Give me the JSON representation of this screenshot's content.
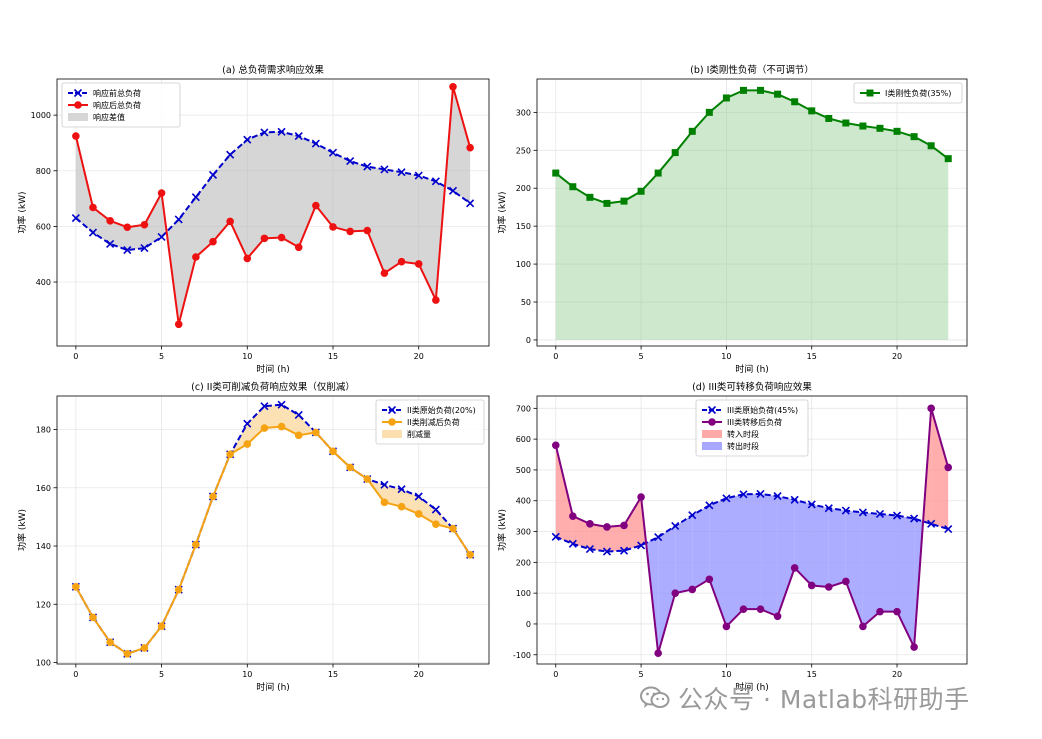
{
  "chart_data": [
    {
      "type": "line",
      "title": "(a) 总负荷需求响应效果",
      "xlabel": "时间 (h)",
      "ylabel": "功率 (kW)",
      "xlim": [
        -1.1,
        24.1
      ],
      "ylim": [
        170,
        1130
      ],
      "xticks": [
        0,
        5,
        10,
        15,
        20
      ],
      "yticks": [
        400,
        600,
        800,
        1000
      ],
      "grid": true,
      "legend_position": "top-left",
      "x": [
        0,
        1,
        2,
        3,
        4,
        5,
        6,
        7,
        8,
        9,
        10,
        11,
        12,
        13,
        14,
        15,
        16,
        17,
        18,
        19,
        20,
        21,
        22,
        23
      ],
      "series": [
        {
          "name": "响应前总负荷",
          "color": "#0000cc",
          "style": "dashed",
          "marker": "x",
          "values": [
            630,
            578,
            537,
            515,
            522,
            562,
            625,
            705,
            785,
            858,
            912,
            938,
            940,
            925,
            898,
            865,
            835,
            815,
            805,
            795,
            783,
            762,
            728,
            683
          ]
        },
        {
          "name": "响应后总负荷",
          "color": "#ee1111",
          "style": "solid",
          "marker": "o",
          "values": [
            925,
            668,
            620,
            597,
            606,
            720,
            248,
            490,
            545,
            618,
            485,
            557,
            560,
            525,
            675,
            598,
            582,
            585,
            432,
            473,
            465,
            335,
            1102,
            883
          ]
        }
      ],
      "fill": [
        {
          "name": "响应差值",
          "color": "#bbbbbb",
          "between": [
            0,
            1
          ]
        }
      ]
    },
    {
      "type": "area",
      "title": "(b) I类刚性负荷（不可调节）",
      "xlabel": "时间 (h)",
      "ylabel": "功率 (kW)",
      "xlim": [
        -1.1,
        24.1
      ],
      "ylim": [
        -8,
        344
      ],
      "xticks": [
        0,
        5,
        10,
        15,
        20
      ],
      "yticks": [
        0,
        50,
        100,
        150,
        200,
        250,
        300
      ],
      "grid": true,
      "legend_position": "top-right",
      "x": [
        0,
        1,
        2,
        3,
        4,
        5,
        6,
        7,
        8,
        9,
        10,
        11,
        12,
        13,
        14,
        15,
        16,
        17,
        18,
        19,
        20,
        21,
        22,
        23
      ],
      "series": [
        {
          "name": "I类刚性负荷(35%)",
          "color": "#008000",
          "style": "solid",
          "marker": "s",
          "values": [
            220,
            202,
            188,
            180,
            183,
            196,
            220,
            247,
            275,
            300,
            319,
            329,
            329,
            324,
            314,
            302,
            292,
            286,
            282,
            279,
            275,
            268,
            256,
            239
          ]
        }
      ],
      "fill": [
        {
          "color": "#90cc90",
          "between": [
            0,
            "zero"
          ]
        }
      ]
    },
    {
      "type": "line",
      "title": "(c) II类可削减负荷响应效果（仅削减）",
      "xlabel": "时间 (h)",
      "ylabel": "功率 (kW)",
      "xlim": [
        -1.1,
        24.1
      ],
      "ylim": [
        99.5,
        191.5
      ],
      "xticks": [
        0,
        5,
        10,
        15,
        20
      ],
      "yticks": [
        100,
        120,
        140,
        160,
        180
      ],
      "grid": true,
      "legend_position": "top-right",
      "x": [
        0,
        1,
        2,
        3,
        4,
        5,
        6,
        7,
        8,
        9,
        10,
        11,
        12,
        13,
        14,
        15,
        16,
        17,
        18,
        19,
        20,
        21,
        22,
        23
      ],
      "series": [
        {
          "name": "II类原始负荷(20%)",
          "color": "#0000cc",
          "style": "dashed",
          "marker": "x",
          "values": [
            126,
            115.5,
            107,
            103,
            105,
            112.5,
            125,
            140.5,
            157,
            171.5,
            182,
            188,
            188.5,
            185,
            179,
            172.5,
            167,
            163,
            161,
            159.5,
            157,
            152.5,
            146,
            137
          ]
        },
        {
          "name": "II类削减后负荷",
          "color": "#f5a312",
          "style": "solid",
          "marker": "o",
          "values": [
            126,
            115.5,
            107,
            103,
            105,
            112.5,
            125,
            140.5,
            157,
            171.5,
            175,
            180.5,
            181,
            178,
            179,
            172.5,
            167,
            163,
            155,
            153.5,
            151,
            147.5,
            146,
            137
          ]
        }
      ],
      "fill": [
        {
          "name": "削减量",
          "color": "#fad9a0",
          "between": [
            0,
            1
          ]
        }
      ]
    },
    {
      "type": "line",
      "title": "(d) III类可转移负荷响应效果",
      "xlabel": "时间 (h)",
      "ylabel": "功率 (kW)",
      "xlim": [
        -1.1,
        24.1
      ],
      "ylim": [
        -130,
        740
      ],
      "xticks": [
        0,
        5,
        10,
        15,
        20
      ],
      "yticks": [
        -100,
        0,
        100,
        200,
        300,
        400,
        500,
        600,
        700
      ],
      "grid": true,
      "legend_position": "top-center",
      "x": [
        0,
        1,
        2,
        3,
        4,
        5,
        6,
        7,
        8,
        9,
        10,
        11,
        12,
        13,
        14,
        15,
        16,
        17,
        18,
        19,
        20,
        21,
        22,
        23
      ],
      "series": [
        {
          "name": "III类原始负荷(45%)",
          "color": "#0000cc",
          "style": "dashed",
          "marker": "x",
          "values": [
            283,
            260,
            243,
            235,
            238,
            255,
            282,
            318,
            353,
            385,
            408,
            421,
            422,
            415,
            403,
            388,
            376,
            368,
            362,
            357,
            352,
            342,
            325,
            308
          ]
        },
        {
          "name": "III类转移后负荷",
          "color": "#800080",
          "style": "solid",
          "marker": "o",
          "values": [
            580,
            350,
            325,
            315,
            320,
            412,
            -95,
            100,
            112,
            145,
            -8,
            48,
            48,
            25,
            182,
            125,
            120,
            138,
            -8,
            40,
            40,
            -75,
            700,
            508
          ]
        }
      ],
      "fill": [
        {
          "name": "转入时段",
          "color": "#ff9999",
          "where": "after > before"
        },
        {
          "name": "转出时段",
          "color": "#9999ff",
          "where": "after < before"
        }
      ]
    }
  ],
  "watermark": "公众号 · Matlab科研助手"
}
